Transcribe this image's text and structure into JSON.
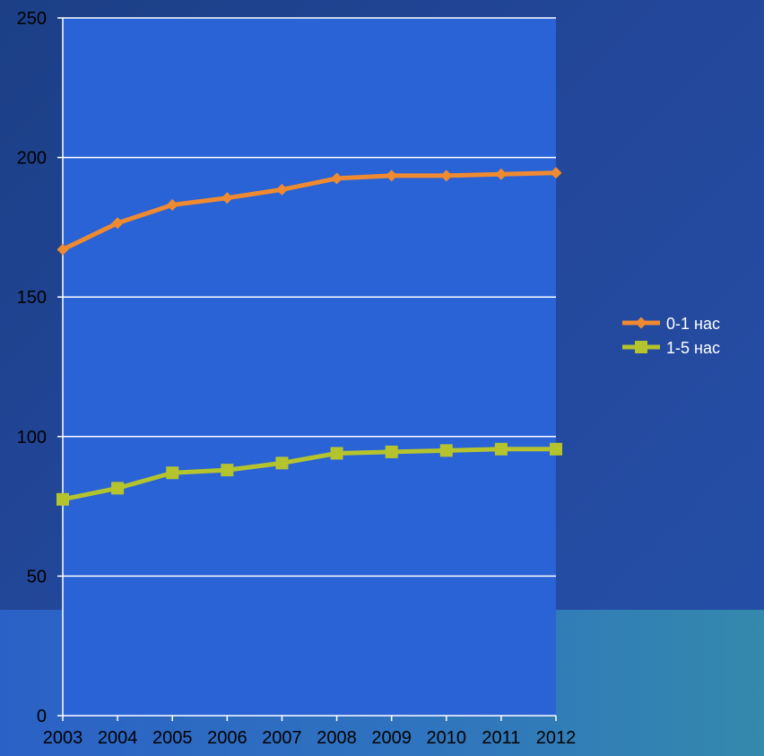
{
  "chart_data": {
    "type": "line",
    "title": "",
    "xlabel": "",
    "ylabel": "",
    "categories": [
      "2003",
      "2004",
      "2005",
      "2006",
      "2007",
      "2008",
      "2009",
      "2010",
      "2011",
      "2012"
    ],
    "ylim": [
      0,
      250
    ],
    "yticks": [
      0,
      50,
      100,
      150,
      200,
      250
    ],
    "grid": true,
    "legend_position": "right",
    "plot_background": "#2a63d6",
    "series": [
      {
        "name": "0-1 нас",
        "color": "#f08a30",
        "marker": "diamond",
        "values": [
          167,
          176.5,
          183,
          185.5,
          188.5,
          192.5,
          193.5,
          193.5,
          194,
          194.5
        ]
      },
      {
        "name": "1-5 нас",
        "color": "#b5c42d",
        "marker": "square",
        "values": [
          77.5,
          81.5,
          87,
          88,
          90.5,
          94,
          94.5,
          95,
          95.5,
          95.5
        ]
      }
    ]
  }
}
